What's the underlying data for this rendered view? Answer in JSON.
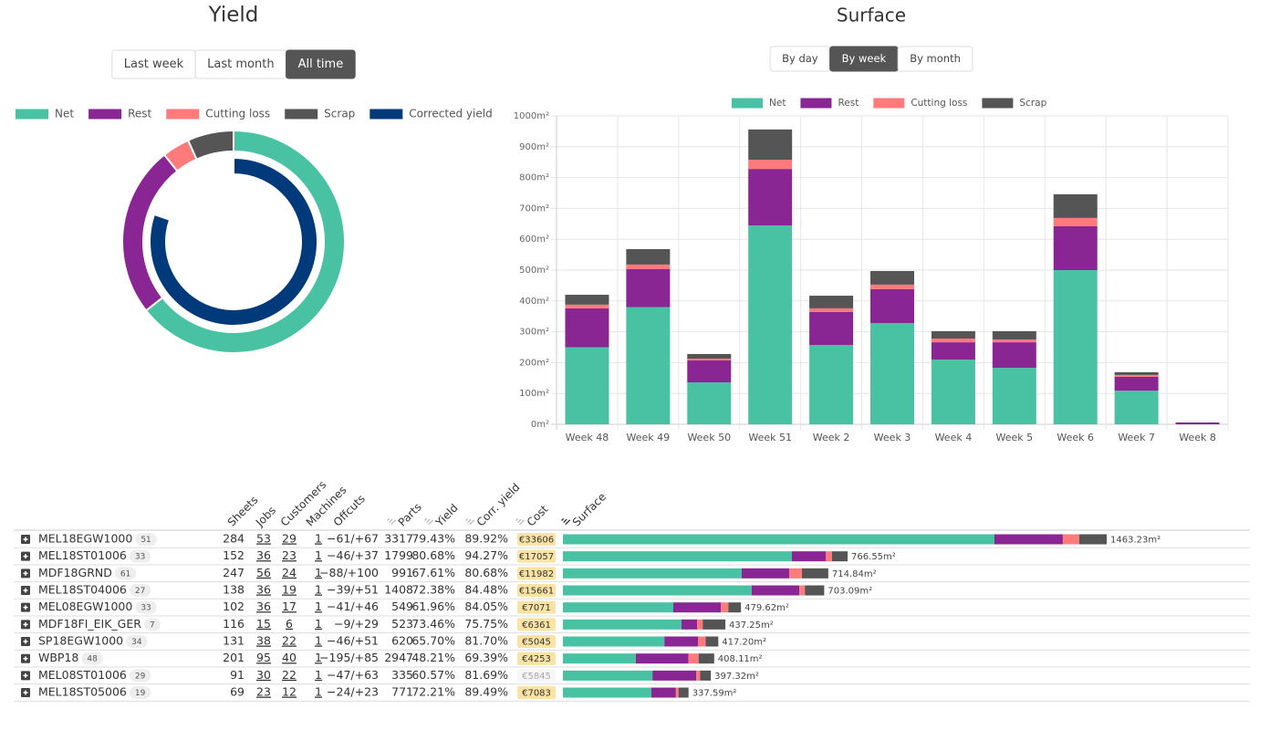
{
  "chart_data": [
    {
      "type": "doughnut",
      "title": "Yield",
      "rings": {
        "outer": {
          "labels": [
            "Net",
            "Rest",
            "Cutting loss",
            "Scrap"
          ],
          "colors": [
            "#48c2a2",
            "#8a2594",
            "#ff7b7b",
            "#555555"
          ],
          "values": [
            64.4,
            24.9,
            4.0,
            6.7
          ]
        },
        "inner": {
          "label": "Corrected yield",
          "color": "#003a7a",
          "value": 80.3
        }
      }
    },
    {
      "type": "bar",
      "stacked": true,
      "title": "Surface",
      "categories": [
        "Week 48",
        "Week 49",
        "Week 50",
        "Week 51",
        "Week 2",
        "Week 3",
        "Week 4",
        "Week 5",
        "Week 6",
        "Week 7",
        "Week 8"
      ],
      "series": [
        {
          "name": "Net",
          "color": "#48c2a2",
          "values": [
            250,
            380,
            136,
            645,
            257,
            328,
            210,
            183,
            500,
            109,
            0
          ]
        },
        {
          "name": "Rest",
          "color": "#8a2594",
          "values": [
            126,
            123,
            71,
            183,
            107,
            110,
            56,
            83,
            142,
            45,
            6
          ]
        },
        {
          "name": "Cutting loss",
          "color": "#ff7b7b",
          "values": [
            12,
            15,
            6,
            30,
            12,
            15,
            12,
            9,
            27,
            6,
            0
          ]
        },
        {
          "name": "Scrap",
          "color": "#555555",
          "values": [
            32,
            50,
            15,
            98,
            41,
            44,
            24,
            27,
            77,
            9,
            0
          ]
        }
      ],
      "ylim": [
        0,
        1000
      ],
      "yticks": [
        {
          "value": 0,
          "label": "0m²"
        },
        {
          "value": 100,
          "label": "100m²"
        },
        {
          "value": 200,
          "label": "200m²"
        },
        {
          "value": 300,
          "label": "300m²"
        },
        {
          "value": 400,
          "label": "400m²"
        },
        {
          "value": 500,
          "label": "500m²"
        },
        {
          "value": 600,
          "label": "600m²"
        },
        {
          "value": 700,
          "label": "700m²"
        },
        {
          "value": 800,
          "label": "800m²"
        },
        {
          "value": 900,
          "label": "900m²"
        },
        {
          "value": 1000,
          "label": "1000m²"
        }
      ],
      "grid": true
    }
  ],
  "yield_filters": {
    "options": [
      "Last week",
      "Last month",
      "All time"
    ],
    "active": 2
  },
  "surface_filters": {
    "options": [
      "By day",
      "By week",
      "By month"
    ],
    "active": 1
  },
  "table": {
    "columns": [
      "Sheets",
      "Jobs",
      "Customers",
      "Machines",
      "Offcuts",
      "Parts",
      "Yield",
      "Corr. yield",
      "Cost",
      "Surface"
    ],
    "rows": [
      {
        "name": "MEL18EGW1000",
        "count": 51,
        "sheets": 284,
        "jobs": 53,
        "customers": 29,
        "machines": 1,
        "offcuts": "−61/+67",
        "parts": 3317,
        "yield": "79.43%",
        "corr_yield": "89.92%",
        "cost": "€33606",
        "cost_muted": false,
        "surface": [
          1161,
          184,
          44,
          74
        ],
        "surface_label": "1463.23m²"
      },
      {
        "name": "MEL18ST01006",
        "count": 33,
        "sheets": 152,
        "jobs": 36,
        "customers": 23,
        "machines": 1,
        "offcuts": "−46/+37",
        "parts": 1799,
        "yield": "80.68%",
        "corr_yield": "94.27%",
        "cost": "€17057",
        "cost_muted": false,
        "surface": [
          616,
          91,
          17,
          42
        ],
        "surface_label": "766.55m²"
      },
      {
        "name": "MDF18GRND",
        "count": 61,
        "sheets": 247,
        "jobs": 56,
        "customers": 24,
        "machines": 1,
        "offcuts": "−88/+100",
        "parts": 991,
        "yield": "67.61%",
        "corr_yield": "80.68%",
        "cost": "€11982",
        "cost_muted": false,
        "surface": [
          481,
          128,
          34,
          71
        ],
        "surface_label": "714.84m²"
      },
      {
        "name": "MEL18ST04006",
        "count": 27,
        "sheets": 138,
        "jobs": 36,
        "customers": 19,
        "machines": 1,
        "offcuts": "−39/+51",
        "parts": 1408,
        "yield": "72.38%",
        "corr_yield": "84.48%",
        "cost": "€15661",
        "cost_muted": false,
        "surface": [
          508,
          128,
          15,
          52
        ],
        "surface_label": "703.09m²"
      },
      {
        "name": "MEL08EGW1000",
        "count": 33,
        "sheets": 102,
        "jobs": 36,
        "customers": 17,
        "machines": 1,
        "offcuts": "−41/+46",
        "parts": 549,
        "yield": "61.96%",
        "corr_yield": "84.05%",
        "cost": "€7071",
        "cost_muted": false,
        "surface": [
          297,
          128,
          20,
          34
        ],
        "surface_label": "479.62m²"
      },
      {
        "name": "MDF18FI_EIK_GER",
        "count": 7,
        "sheets": 116,
        "jobs": 15,
        "customers": 6,
        "machines": 1,
        "offcuts": "−9/+29",
        "parts": 523,
        "yield": "73.46%",
        "corr_yield": "75.75%",
        "cost": "€6361",
        "cost_muted": false,
        "surface": [
          319,
          42,
          15,
          61
        ],
        "surface_label": "437.25m²"
      },
      {
        "name": "SP18EGW1000",
        "count": 34,
        "sheets": 131,
        "jobs": 38,
        "customers": 22,
        "machines": 1,
        "offcuts": "−46/+51",
        "parts": 620,
        "yield": "65.70%",
        "corr_yield": "81.70%",
        "cost": "€5045",
        "cost_muted": false,
        "surface": [
          273,
          91,
          20,
          34
        ],
        "surface_label": "417.20m²"
      },
      {
        "name": "WBP18",
        "count": 48,
        "sheets": 201,
        "jobs": 95,
        "customers": 40,
        "machines": 1,
        "offcuts": "−195/+85",
        "parts": 2947,
        "yield": "48.21%",
        "corr_yield": "69.39%",
        "cost": "€4253",
        "cost_muted": false,
        "surface": [
          196,
          142,
          27,
          42
        ],
        "surface_label": "408.11m²"
      },
      {
        "name": "MEL08ST01006",
        "count": 29,
        "sheets": 91,
        "jobs": 30,
        "customers": 22,
        "machines": 1,
        "offcuts": "−47/+63",
        "parts": 335,
        "yield": "60.57%",
        "corr_yield": "81.69%",
        "cost": "€5845",
        "cost_muted": true,
        "surface": [
          241,
          118,
          10,
          29
        ],
        "surface_label": "397.32m²"
      },
      {
        "name": "MEL18ST05006",
        "count": 19,
        "sheets": 69,
        "jobs": 23,
        "customers": 12,
        "machines": 1,
        "offcuts": "−24/+23",
        "parts": 771,
        "yield": "72.21%",
        "corr_yield": "89.49%",
        "cost": "€7083",
        "cost_muted": false,
        "surface": [
          238,
          66,
          7,
          27
        ],
        "surface_label": "337.59m²"
      }
    ]
  }
}
